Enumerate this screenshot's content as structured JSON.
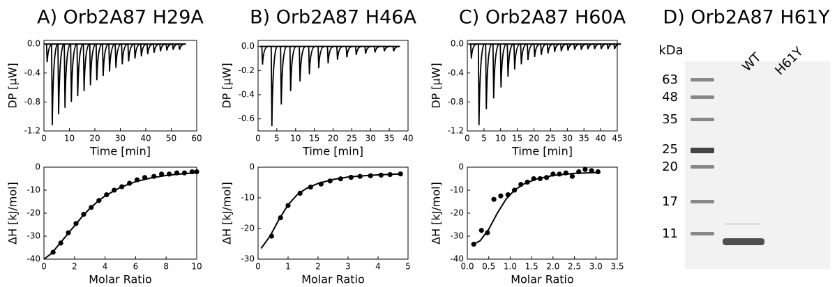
{
  "chart_data": [
    {
      "type": "line",
      "title": "A) Orb2A87 H29A",
      "xlabel": "Time [min]",
      "ylabel": "DP [μW]",
      "xlim": [
        0,
        60
      ],
      "xticks": [
        0,
        10,
        20,
        30,
        40,
        50,
        60
      ],
      "ylim": [
        -1.2,
        0.05
      ],
      "yticks": [
        -1.2,
        -0.8,
        -0.4,
        {
          "value": 0,
          "label": "0.0"
        }
      ],
      "baseline": 0,
      "series": [
        {
          "color": "#000000",
          "x": [
            1,
            3,
            5.5,
            8,
            10.5,
            13,
            15.5,
            18,
            20.5,
            23,
            25.5,
            28,
            30.5,
            33,
            35.5,
            38,
            40.5,
            43,
            45.5,
            48,
            50.5,
            53
          ],
          "values": [
            -0.25,
            -1.12,
            -0.97,
            -0.88,
            -0.8,
            -0.72,
            -0.65,
            -0.57,
            -0.5,
            -0.44,
            -0.38,
            -0.33,
            -0.28,
            -0.24,
            -0.2,
            -0.17,
            -0.14,
            -0.12,
            -0.1,
            -0.09,
            -0.08,
            -0.08
          ]
        }
      ]
    },
    {
      "type": "scatter",
      "xlabel": "Molar Ratio",
      "ylabel": "ΔH [kJ/mol]",
      "xlim": [
        0,
        10
      ],
      "xticks": [
        0,
        2,
        4,
        6,
        8,
        10
      ],
      "ylim": [
        -40,
        0
      ],
      "yticks": [
        -40,
        -30,
        -20,
        -10,
        0
      ],
      "series": [
        {
          "mode": "markers",
          "color": "#000000",
          "x": [
            0.6,
            1.1,
            1.6,
            2.1,
            2.6,
            3.1,
            3.6,
            4.1,
            4.6,
            5.1,
            5.6,
            6.1,
            6.6,
            7.2,
            7.7,
            8.2,
            8.7,
            9.2,
            9.7,
            10.0
          ],
          "values": [
            -37,
            -33,
            -28.5,
            -24.5,
            -20.5,
            -17.5,
            -14.5,
            -12,
            -10,
            -8.5,
            -7,
            -5.5,
            -4.5,
            -4,
            -3,
            -3,
            -2.5,
            -2.5,
            -2,
            -2
          ]
        },
        {
          "mode": "line",
          "color": "#000000",
          "x": [
            0,
            0.5,
            1,
            1.5,
            2,
            2.5,
            3,
            3.5,
            4,
            5,
            6,
            7,
            8,
            9,
            10
          ],
          "values": [
            -40,
            -37.5,
            -33.5,
            -29.5,
            -25.5,
            -21.5,
            -18,
            -15,
            -12.5,
            -8.8,
            -6.3,
            -4.7,
            -3.6,
            -2.9,
            -2.4
          ]
        }
      ]
    },
    {
      "type": "line",
      "title": "B) Orb2A87 H46A",
      "xlabel": "Time [min]",
      "ylabel": "DP [μW]",
      "xlim": [
        0,
        40
      ],
      "xticks": [
        0,
        5,
        10,
        15,
        20,
        25,
        30,
        35,
        40
      ],
      "ylim": [
        -0.7,
        0.05
      ],
      "yticks": [
        -0.6,
        -0.4,
        -0.2,
        {
          "value": 0,
          "label": "0.0"
        }
      ],
      "baseline": 0,
      "series": [
        {
          "color": "#000000",
          "x": [
            1,
            3.5,
            6,
            8.5,
            11,
            13.5,
            16,
            18.5,
            21,
            23.5,
            26,
            28.5,
            31,
            33.5,
            36
          ],
          "values": [
            -0.15,
            -0.66,
            -0.48,
            -0.37,
            -0.29,
            -0.23,
            -0.18,
            -0.14,
            -0.11,
            -0.09,
            -0.07,
            -0.06,
            -0.05,
            -0.04,
            -0.04
          ]
        }
      ]
    },
    {
      "type": "scatter",
      "xlabel": "Molar Ratio",
      "ylabel": "ΔH [kJ/mol]",
      "xlim": [
        0,
        5
      ],
      "xticks": [
        0,
        1,
        2,
        3,
        4,
        5
      ],
      "ylim": [
        -30,
        0
      ],
      "yticks": [
        -30,
        -20,
        -10,
        0
      ],
      "series": [
        {
          "mode": "markers",
          "color": "#000000",
          "x": [
            0.45,
            0.75,
            1.0,
            1.4,
            1.75,
            2.1,
            2.4,
            2.75,
            3.1,
            3.4,
            3.75,
            4.1,
            4.4,
            4.75
          ],
          "values": [
            -22.5,
            -16.5,
            -12.5,
            -8.5,
            -6.5,
            -5.5,
            -4.5,
            -3.8,
            -3.3,
            -3,
            -2.8,
            -2.6,
            -2.4,
            -2.2
          ]
        },
        {
          "mode": "line",
          "color": "#000000",
          "x": [
            0.1,
            0.4,
            0.7,
            1.0,
            1.3,
            1.6,
            2,
            2.5,
            3,
            3.5,
            4,
            4.8
          ],
          "values": [
            -26.5,
            -22.5,
            -17,
            -12.3,
            -9,
            -7,
            -5.3,
            -4,
            -3.2,
            -2.8,
            -2.5,
            -2.2
          ]
        }
      ]
    },
    {
      "type": "line",
      "title": "C) Orb2A87 H60A",
      "xlabel": "Time [min]",
      "ylabel": "DP [μW]",
      "xlim": [
        0,
        45
      ],
      "xticks": [
        0,
        5,
        10,
        15,
        20,
        25,
        30,
        35,
        40,
        45
      ],
      "ylim": [
        -1.2,
        0.05
      ],
      "yticks": [
        -1.2,
        -0.8,
        -0.4,
        {
          "value": 0,
          "label": "0.0"
        }
      ],
      "baseline": 0,
      "series": [
        {
          "color": "#000000",
          "x": [
            1,
            3.3,
            5.5,
            7.7,
            9.9,
            12,
            14,
            16,
            18,
            20,
            22,
            24,
            26,
            28,
            30,
            32,
            34,
            36,
            38,
            40,
            42,
            44
          ],
          "values": [
            -0.2,
            -1.12,
            -0.9,
            -0.75,
            -0.6,
            -0.45,
            -0.35,
            -0.28,
            -0.22,
            -0.18,
            -0.15,
            -0.13,
            -0.11,
            -0.1,
            -0.09,
            -0.08,
            -0.08,
            -0.07,
            -0.07,
            -0.07,
            -0.07,
            -0.07
          ]
        }
      ]
    },
    {
      "type": "scatter",
      "xlabel": "Molar Ratio",
      "ylabel": "ΔH [kJ/mol]",
      "xlim": [
        0,
        3.5
      ],
      "xticks": [
        {
          "value": 0,
          "label": "0.0"
        },
        0.5,
        {
          "value": 1,
          "label": "1.0"
        },
        1.5,
        {
          "value": 2,
          "label": "2.0"
        },
        2.5,
        {
          "value": 3,
          "label": "3.0"
        },
        3.5
      ],
      "ylim": [
        -40,
        0
      ],
      "yticks": [
        -40,
        -30,
        -20,
        -10,
        0
      ],
      "series": [
        {
          "mode": "markers",
          "color": "#000000",
          "x": [
            0.15,
            0.33,
            0.47,
            0.62,
            0.78,
            0.95,
            1.1,
            1.25,
            1.4,
            1.55,
            1.7,
            1.85,
            2.0,
            2.15,
            2.3,
            2.45,
            2.6,
            2.75,
            2.9,
            3.05
          ],
          "values": [
            -33.5,
            -27.5,
            -28.5,
            -14,
            -12.5,
            -12,
            -10,
            -7.5,
            -6.5,
            -5,
            -5,
            -4.5,
            -3,
            -3,
            -2.5,
            -4,
            -2,
            -1,
            -1.5,
            -2
          ]
        },
        {
          "mode": "line",
          "color": "#000000",
          "x": [
            0.1,
            0.3,
            0.5,
            0.7,
            0.9,
            1.1,
            1.3,
            1.6,
            2.0,
            2.5,
            3.05
          ],
          "values": [
            -34,
            -32,
            -27,
            -20,
            -14,
            -10,
            -7.5,
            -5.2,
            -3.6,
            -2.7,
            -2.3
          ]
        }
      ]
    }
  ],
  "gel": {
    "title": "D) Orb2A87 H61Y",
    "unit": "kDa",
    "markers": [
      63,
      48,
      35,
      25,
      20,
      17,
      11
    ],
    "lanes": [
      "WT",
      "H61Y"
    ]
  }
}
